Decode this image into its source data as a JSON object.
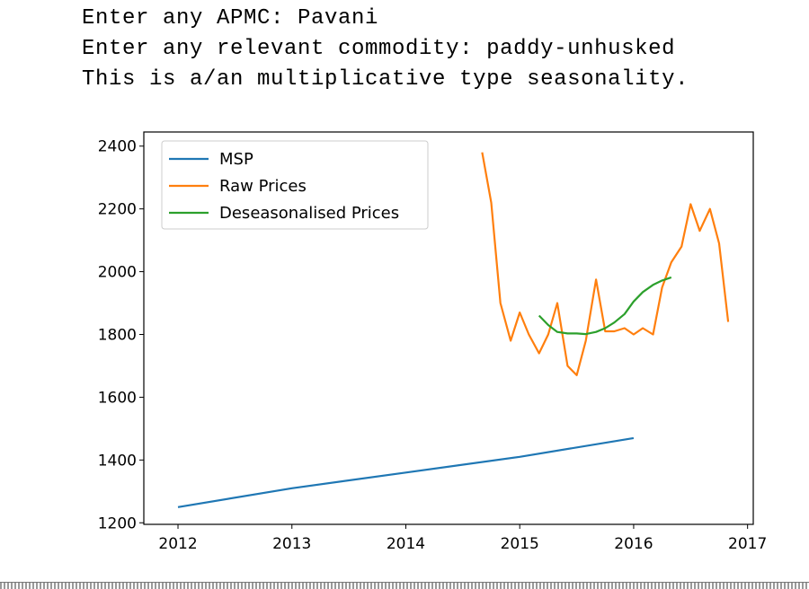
{
  "console": {
    "lines": [
      "Enter any APMC: Pavani",
      "Enter any relevant commodity: paddy-unhusked",
      "This is a/an multiplicative type seasonality."
    ]
  },
  "chart_data": {
    "type": "line",
    "title": "",
    "xlabel": "",
    "ylabel": "",
    "xlim": [
      2011.7,
      2017.05
    ],
    "ylim": [
      1195,
      2445
    ],
    "xticks": [
      2012,
      2013,
      2014,
      2015,
      2016,
      2017
    ],
    "yticks": [
      1200,
      1400,
      1600,
      1800,
      2000,
      2200,
      2400
    ],
    "grid": false,
    "legend_position": "top-left",
    "series": [
      {
        "name": "MSP",
        "color": "#1f77b4",
        "x": [
          2012,
          2013,
          2014,
          2015,
          2016
        ],
        "y": [
          1250,
          1310,
          1360,
          1410,
          1470
        ]
      },
      {
        "name": "Raw Prices",
        "color": "#ff7f0e",
        "x": [
          2014.67,
          2014.75,
          2014.83,
          2014.92,
          2015.0,
          2015.08,
          2015.17,
          2015.25,
          2015.33,
          2015.42,
          2015.5,
          2015.58,
          2015.67,
          2015.75,
          2015.83,
          2015.92,
          2016.0,
          2016.08,
          2016.17,
          2016.25,
          2016.33,
          2016.42,
          2016.5,
          2016.58,
          2016.67,
          2016.75,
          2016.83
        ],
        "y": [
          2380,
          2220,
          1900,
          1780,
          1870,
          1800,
          1740,
          1800,
          1900,
          1700,
          1670,
          1780,
          1975,
          1810,
          1810,
          1820,
          1800,
          1820,
          1800,
          1950,
          2030,
          2080,
          2215,
          2130,
          2200,
          2090,
          1840
        ]
      },
      {
        "name": "Deseasonalised Prices",
        "color": "#2ca02c",
        "x": [
          2015.17,
          2015.25,
          2015.33,
          2015.42,
          2015.5,
          2015.58,
          2015.67,
          2015.75,
          2015.83,
          2015.92,
          2016.0,
          2016.08,
          2016.17,
          2016.25,
          2016.33
        ],
        "y": [
          1860,
          1830,
          1808,
          1803,
          1803,
          1801,
          1808,
          1820,
          1838,
          1865,
          1905,
          1935,
          1958,
          1972,
          1982
        ]
      }
    ]
  }
}
